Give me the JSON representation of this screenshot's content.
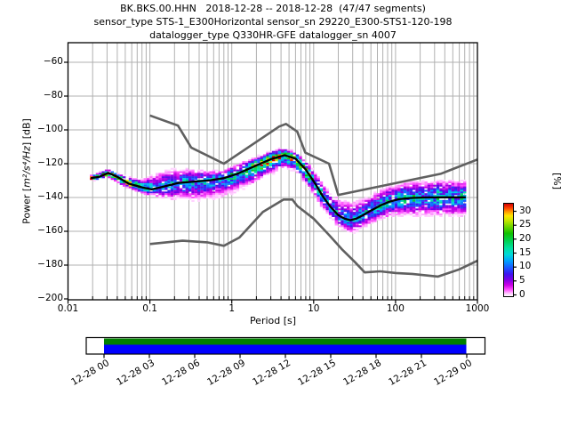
{
  "title": {
    "line1": "BK.BKS.00.HHN   2018-12-28 -- 2018-12-28  (47/47 segments)",
    "line2": "sensor_type STS-1_E300Horizontal sensor_sn 29220_E300-STS1-120-198",
    "line3": "datalogger_type Q330HR-GFE datalogger_sn 4007"
  },
  "chart_data": {
    "type": "heatmap",
    "subtype": "probabilistic-power-spectral-density",
    "xlabel": "Period [s]",
    "ylabel": {
      "prefix": "Power [",
      "math": "m²/s⁴/Hz",
      "suffix": "] [dB]"
    },
    "xscale": "log",
    "xlim": [
      0.01,
      1000
    ],
    "ylim": [
      -200,
      -48
    ],
    "grid": true,
    "x_ticks": [
      {
        "value": 0.01,
        "label": "0.01"
      },
      {
        "value": 0.1,
        "label": "0.1"
      },
      {
        "value": 1,
        "label": "1"
      },
      {
        "value": 10,
        "label": "10"
      },
      {
        "value": 100,
        "label": "100"
      },
      {
        "value": 1000,
        "label": "1000"
      }
    ],
    "y_ticks": [
      {
        "value": -60,
        "label": "−60"
      },
      {
        "value": -80,
        "label": "−80"
      },
      {
        "value": -100,
        "label": "−100"
      },
      {
        "value": -120,
        "label": "−120"
      },
      {
        "value": -140,
        "label": "−140"
      },
      {
        "value": -160,
        "label": "−160"
      },
      {
        "value": -180,
        "label": "−180"
      },
      {
        "value": -200,
        "label": "−200"
      }
    ],
    "colorbar": {
      "label": "[%]",
      "tick_values": [
        30,
        25,
        20,
        15,
        10,
        5,
        0
      ],
      "vmax": 33,
      "stops": [
        [
          0.0,
          "#ffffff"
        ],
        [
          0.03,
          "#ffc8ff"
        ],
        [
          0.07,
          "#ff50ff"
        ],
        [
          0.12,
          "#cc00e6"
        ],
        [
          0.18,
          "#7a00e6"
        ],
        [
          0.24,
          "#3c14f0"
        ],
        [
          0.3,
          "#1e50ff"
        ],
        [
          0.38,
          "#00a0ff"
        ],
        [
          0.45,
          "#00d8d8"
        ],
        [
          0.52,
          "#00e0a0"
        ],
        [
          0.6,
          "#00d050"
        ],
        [
          0.68,
          "#10c000"
        ],
        [
          0.76,
          "#78d800"
        ],
        [
          0.82,
          "#c8e600"
        ],
        [
          0.87,
          "#ffe600"
        ],
        [
          0.91,
          "#ffa000"
        ],
        [
          0.95,
          "#ff4600"
        ],
        [
          1.0,
          "#d40000"
        ]
      ]
    },
    "mean_curve": [
      [
        0.019,
        -128.6
      ],
      [
        0.024,
        -127.8
      ],
      [
        0.031,
        -125.4
      ],
      [
        0.04,
        -127.8
      ],
      [
        0.055,
        -131.8
      ],
      [
        0.08,
        -134.0
      ],
      [
        0.105,
        -135.2
      ],
      [
        0.14,
        -133.8
      ],
      [
        0.22,
        -131.4
      ],
      [
        0.35,
        -130.6
      ],
      [
        0.55,
        -129.8
      ],
      [
        0.8,
        -128.6
      ],
      [
        1.2,
        -125.8
      ],
      [
        2.0,
        -121.0
      ],
      [
        3.0,
        -117.3
      ],
      [
        4.4,
        -115.0
      ],
      [
        6.0,
        -117.0
      ],
      [
        8.0,
        -123.5
      ],
      [
        10.5,
        -132.0
      ],
      [
        13.0,
        -139.5
      ],
      [
        16.0,
        -145.5
      ],
      [
        20.0,
        -150.5
      ],
      [
        24.0,
        -152.6
      ],
      [
        28.0,
        -153.4
      ],
      [
        33.0,
        -152.6
      ],
      [
        40.0,
        -150.5
      ],
      [
        50.0,
        -147.8
      ],
      [
        65.0,
        -144.8
      ],
      [
        85.0,
        -142.4
      ],
      [
        110.0,
        -141.0
      ],
      [
        150.0,
        -140.3
      ],
      [
        220.0,
        -140.0
      ],
      [
        350.0,
        -139.9
      ],
      [
        500.0,
        -139.9
      ],
      [
        720.0,
        -139.9
      ]
    ],
    "band": [
      [
        0.019,
        -127.2,
        -130.4,
        31
      ],
      [
        0.031,
        -123.6,
        -127.6,
        31
      ],
      [
        0.045,
        -127.0,
        -132.2,
        28
      ],
      [
        0.065,
        -129.5,
        -135.5,
        22
      ],
      [
        0.09,
        -129.5,
        -138.0,
        16
      ],
      [
        0.13,
        -125.5,
        -139.5,
        13
      ],
      [
        0.2,
        -124.0,
        -140.5,
        12
      ],
      [
        0.35,
        -124.0,
        -140.5,
        12
      ],
      [
        0.55,
        -124.5,
        -140.0,
        12
      ],
      [
        0.8,
        -124.0,
        -138.5,
        13
      ],
      [
        1.2,
        -120.5,
        -134.5,
        16
      ],
      [
        2.0,
        -116.5,
        -129.5,
        21
      ],
      [
        3.0,
        -113.0,
        -124.5,
        25
      ],
      [
        4.4,
        -111.3,
        -121.0,
        26
      ],
      [
        6.0,
        -113.5,
        -123.5,
        24
      ],
      [
        8.0,
        -118.5,
        -130.5,
        21
      ],
      [
        10.5,
        -126.0,
        -139.0,
        17
      ],
      [
        13,
        -132.5,
        -146.0,
        15
      ],
      [
        16,
        -138.0,
        -151.5,
        14
      ],
      [
        20,
        -141.5,
        -157.0,
        13
      ],
      [
        24,
        -142.8,
        -159.5,
        13
      ],
      [
        28,
        -143.2,
        -160.8,
        13
      ],
      [
        33,
        -142.8,
        -159.8,
        13
      ],
      [
        40,
        -141.5,
        -157.5,
        13
      ],
      [
        50,
        -139.5,
        -155.0,
        13
      ],
      [
        65,
        -136.5,
        -152.5,
        13
      ],
      [
        85,
        -134.0,
        -150.8,
        13
      ],
      [
        110,
        -132.5,
        -150.0,
        14
      ],
      [
        150,
        -131.5,
        -149.8,
        14
      ],
      [
        220,
        -131.0,
        -149.8,
        14
      ],
      [
        350,
        -130.5,
        -150.0,
        14
      ],
      [
        500,
        -130.5,
        -150.0,
        14
      ],
      [
        720,
        -130.8,
        -149.5,
        14
      ]
    ],
    "noise_models": {
      "color": "#606060",
      "high": [
        [
          0.1,
          -91.5
        ],
        [
          0.22,
          -97.4
        ],
        [
          0.32,
          -110.5
        ],
        [
          0.8,
          -120.0
        ],
        [
          3.8,
          -98.0
        ],
        [
          4.6,
          -96.5
        ],
        [
          6.3,
          -101.0
        ],
        [
          7.9,
          -113.5
        ],
        [
          15.4,
          -120.0
        ],
        [
          20.0,
          -138.5
        ],
        [
          354.8,
          -126.0
        ],
        [
          1000,
          -117.5
        ]
      ],
      "low": [
        [
          0.1,
          -167.5
        ],
        [
          0.25,
          -165.6
        ],
        [
          0.5,
          -166.5
        ],
        [
          0.8,
          -168.6
        ],
        [
          1.24,
          -163.7
        ],
        [
          2.4,
          -148.6
        ],
        [
          4.3,
          -141.2
        ],
        [
          5.5,
          -141.2
        ],
        [
          6.3,
          -145.0
        ],
        [
          10.0,
          -152.5
        ],
        [
          15.5,
          -162.3
        ],
        [
          22.0,
          -170.5
        ],
        [
          31.6,
          -178.0
        ],
        [
          42.0,
          -184.3
        ],
        [
          65.0,
          -183.7
        ],
        [
          101.0,
          -184.7
        ],
        [
          160.0,
          -185.2
        ],
        [
          330.0,
          -186.8
        ],
        [
          600.0,
          -182.5
        ],
        [
          1000.0,
          -177.4
        ]
      ]
    },
    "colors": {
      "mean_line": "#000000",
      "grid": "#b0b0b0",
      "frame": "#000000"
    }
  },
  "timeline": {
    "tick_labels": [
      "12-28 00",
      "12-28 03",
      "12-28 06",
      "12-28 09",
      "12-28 12",
      "12-28 15",
      "12-28 18",
      "12-28 21",
      "12-29 00"
    ],
    "coverage_color": "#008000",
    "segment_color": "#0000ff"
  }
}
